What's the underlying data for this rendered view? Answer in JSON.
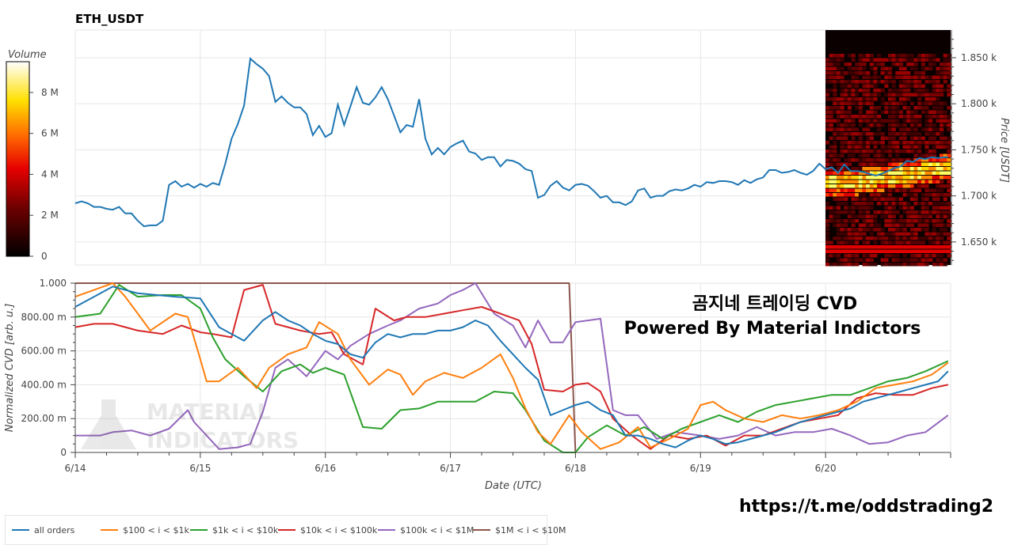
{
  "chart_data": [
    {
      "type": "line",
      "title": "ETH_USDT",
      "ylabel": "Price [USDT]",
      "ylim": [
        1625,
        1880
      ],
      "yticks": [
        "1.650 k",
        "1.700 k",
        "1.750 k",
        "1.800 k",
        "1.850 k"
      ],
      "ytick_values": [
        1650,
        1700,
        1750,
        1800,
        1850
      ],
      "heatmap": {
        "colorbar_label": "Volume",
        "colorbar_ticks": [
          "0",
          "2 M",
          "4 M",
          "6 M",
          "8 M"
        ],
        "colorbar_values": [
          0,
          2,
          4,
          6,
          8
        ],
        "colorbar_max": 9.5
      },
      "series": [
        {
          "color": "#1f77b4",
          "x": [
            0.0,
            0.05,
            0.1,
            0.15,
            0.2,
            0.25,
            0.3,
            0.35,
            0.4,
            0.45,
            0.5,
            0.55,
            0.6,
            0.65,
            0.7,
            0.75,
            0.8,
            0.85,
            0.9,
            0.95,
            1.0,
            1.05,
            1.1,
            1.15,
            1.2,
            1.25,
            1.3,
            1.35,
            1.4,
            1.45,
            1.5,
            1.55,
            1.6,
            1.65,
            1.7,
            1.75,
            1.8,
            1.85,
            1.9,
            1.95,
            2.0,
            2.05,
            2.1,
            2.15,
            2.2,
            2.25,
            2.3,
            2.35,
            2.4,
            2.45,
            2.5,
            2.55,
            2.6,
            2.65,
            2.7,
            2.75,
            2.8,
            2.85,
            2.9,
            2.95,
            3.0,
            3.05,
            3.1,
            3.15,
            3.2,
            3.25,
            3.3,
            3.35,
            3.4,
            3.45,
            3.5,
            3.55,
            3.6,
            3.65,
            3.7,
            3.75,
            3.8,
            3.85,
            3.9,
            3.95,
            4.0,
            4.05,
            4.1,
            4.15,
            4.2,
            4.25,
            4.3,
            4.35,
            4.4,
            4.45,
            4.5,
            4.55,
            4.6,
            4.65,
            4.7,
            4.75,
            4.8,
            4.85,
            4.9,
            4.95,
            5.0,
            5.05,
            5.1,
            5.15,
            5.2,
            5.25,
            5.3,
            5.35,
            5.4,
            5.45,
            5.5,
            5.55,
            5.6,
            5.65,
            5.7,
            5.75,
            5.8,
            5.85,
            5.9,
            5.95,
            6.0,
            6.05,
            6.1,
            6.15,
            6.2,
            6.25,
            6.3,
            6.35,
            6.4,
            6.45,
            6.5,
            6.55,
            6.6,
            6.65,
            6.7,
            6.75,
            6.8,
            6.85,
            6.9,
            6.95,
            6.98
          ],
          "y": [
            1692,
            1694,
            1692,
            1688,
            1688,
            1686,
            1685,
            1688,
            1681,
            1681,
            1673,
            1667,
            1668,
            1668,
            1673,
            1712,
            1716,
            1710,
            1713,
            1709,
            1713,
            1710,
            1714,
            1712,
            1735,
            1762,
            1778,
            1798,
            1849,
            1843,
            1838,
            1830,
            1802,
            1808,
            1801,
            1796,
            1796,
            1789,
            1766,
            1776,
            1764,
            1768,
            1799,
            1777,
            1797,
            1818,
            1801,
            1799,
            1807,
            1818,
            1805,
            1787,
            1769,
            1777,
            1775,
            1805,
            1762,
            1745,
            1752,
            1745,
            1753,
            1757,
            1760,
            1748,
            1746,
            1739,
            1742,
            1742,
            1732,
            1739,
            1738,
            1735,
            1729,
            1727,
            1698,
            1701,
            1711,
            1716,
            1709,
            1706,
            1712,
            1713,
            1711,
            1705,
            1698,
            1700,
            1693,
            1693,
            1690,
            1694,
            1706,
            1708,
            1698,
            1700,
            1700,
            1705,
            1707,
            1706,
            1708,
            1712,
            1710,
            1715,
            1714,
            1716,
            1716,
            1715,
            1712,
            1717,
            1714,
            1718,
            1720,
            1728,
            1728,
            1725,
            1726,
            1728,
            1725,
            1723,
            1727,
            1735,
            1729,
            1731,
            1725,
            1734,
            1727,
            1727,
            1726,
            1724,
            1722,
            1724,
            1727,
            1730,
            1732,
            1738,
            1737,
            1741,
            1740,
            1742,
            1741,
            1742,
            1742
          ]
        }
      ]
    },
    {
      "type": "line",
      "xlabel": "Date (UTC)",
      "ylabel": "Normalized CVD [arb. u.]",
      "ylim": [
        0,
        1
      ],
      "yticks": [
        "0",
        "200.00 m",
        "400.00 m",
        "600.00 m",
        "800.00 m",
        "1.000"
      ],
      "ytick_values": [
        0,
        0.2,
        0.4,
        0.6,
        0.8,
        1.0
      ],
      "categories": [
        "6/14",
        "6/15",
        "6/16",
        "6/17",
        "6/18",
        "6/19",
        "6/20"
      ],
      "x_range": [
        0,
        7
      ],
      "annotations": [
        "곰지네 트레이딩 CVD",
        "Powered By Material Indictors"
      ],
      "watermark": [
        "MATERIAL",
        "INDICATORS"
      ],
      "series": [
        {
          "name": "all orders",
          "color": "#1f77b4",
          "x": [
            0,
            0.3,
            0.5,
            0.8,
            1.0,
            1.15,
            1.35,
            1.5,
            1.6,
            1.7,
            1.8,
            1.9,
            2.0,
            2.1,
            2.2,
            2.3,
            2.4,
            2.5,
            2.6,
            2.7,
            2.8,
            2.9,
            3.0,
            3.1,
            3.2,
            3.3,
            3.4,
            3.5,
            3.6,
            3.7,
            3.8,
            3.9,
            4.0,
            4.1,
            4.2,
            4.3,
            4.4,
            4.5,
            4.6,
            4.7,
            4.8,
            4.9,
            5.0,
            5.1,
            5.2,
            5.3,
            5.4,
            5.5,
            5.6,
            5.7,
            5.8,
            5.9,
            6.0,
            6.1,
            6.2,
            6.3,
            6.4,
            6.5,
            6.6,
            6.7,
            6.8,
            6.9,
            6.98
          ],
          "y": [
            0.86,
            0.98,
            0.94,
            0.92,
            0.91,
            0.74,
            0.66,
            0.78,
            0.83,
            0.78,
            0.75,
            0.7,
            0.66,
            0.64,
            0.58,
            0.56,
            0.65,
            0.7,
            0.68,
            0.7,
            0.7,
            0.72,
            0.72,
            0.74,
            0.78,
            0.75,
            0.66,
            0.58,
            0.5,
            0.43,
            0.22,
            0.25,
            0.28,
            0.3,
            0.25,
            0.22,
            0.1,
            0.1,
            0.08,
            0.05,
            0.03,
            0.07,
            0.1,
            0.08,
            0.05,
            0.06,
            0.08,
            0.1,
            0.12,
            0.15,
            0.18,
            0.2,
            0.22,
            0.24,
            0.26,
            0.3,
            0.32,
            0.34,
            0.36,
            0.38,
            0.4,
            0.42,
            0.48
          ]
        },
        {
          "name": "$100 < i < $1k",
          "color": "#ff7f0e",
          "x": [
            0,
            0.3,
            0.4,
            0.6,
            0.8,
            0.9,
            1.0,
            1.05,
            1.15,
            1.3,
            1.45,
            1.55,
            1.7,
            1.85,
            1.95,
            2.1,
            2.2,
            2.35,
            2.5,
            2.6,
            2.7,
            2.8,
            2.95,
            3.1,
            3.25,
            3.4,
            3.5,
            3.6,
            3.7,
            3.8,
            3.95,
            4.05,
            4.2,
            4.35,
            4.5,
            4.6,
            4.75,
            4.9,
            5.0,
            5.1,
            5.2,
            5.35,
            5.5,
            5.65,
            5.8,
            5.95,
            6.1,
            6.25,
            6.4,
            6.55,
            6.7,
            6.85,
            6.98
          ],
          "y": [
            0.92,
            1.0,
            0.92,
            0.72,
            0.82,
            0.8,
            0.55,
            0.42,
            0.42,
            0.5,
            0.38,
            0.5,
            0.58,
            0.62,
            0.77,
            0.7,
            0.55,
            0.4,
            0.49,
            0.46,
            0.34,
            0.42,
            0.47,
            0.44,
            0.5,
            0.58,
            0.44,
            0.26,
            0.12,
            0.05,
            0.22,
            0.12,
            0.02,
            0.06,
            0.15,
            0.03,
            0.08,
            0.14,
            0.28,
            0.3,
            0.25,
            0.2,
            0.18,
            0.22,
            0.2,
            0.22,
            0.25,
            0.3,
            0.38,
            0.4,
            0.42,
            0.46,
            0.53
          ]
        },
        {
          "name": "$1k < i < $10k",
          "color": "#2ca02c",
          "x": [
            0,
            0.2,
            0.35,
            0.5,
            0.7,
            0.85,
            1.0,
            1.1,
            1.2,
            1.35,
            1.5,
            1.65,
            1.8,
            1.9,
            2.0,
            2.15,
            2.3,
            2.45,
            2.6,
            2.75,
            2.9,
            3.05,
            3.2,
            3.35,
            3.5,
            3.6,
            3.75,
            3.9,
            4.0,
            4.1,
            4.25,
            4.4,
            4.55,
            4.7,
            4.85,
            5.0,
            5.15,
            5.3,
            5.45,
            5.6,
            5.75,
            5.9,
            6.05,
            6.2,
            6.35,
            6.5,
            6.65,
            6.8,
            6.98
          ],
          "y": [
            0.8,
            0.82,
            0.99,
            0.92,
            0.93,
            0.93,
            0.85,
            0.68,
            0.55,
            0.45,
            0.36,
            0.48,
            0.52,
            0.47,
            0.5,
            0.46,
            0.15,
            0.14,
            0.25,
            0.26,
            0.3,
            0.3,
            0.3,
            0.36,
            0.35,
            0.25,
            0.07,
            0.0,
            0.0,
            0.09,
            0.16,
            0.1,
            0.15,
            0.08,
            0.14,
            0.18,
            0.22,
            0.18,
            0.24,
            0.28,
            0.3,
            0.32,
            0.34,
            0.34,
            0.38,
            0.42,
            0.44,
            0.48,
            0.54
          ]
        },
        {
          "name": "$10k < i < $100k",
          "color": "#d62728",
          "x": [
            0,
            0.15,
            0.3,
            0.5,
            0.7,
            0.85,
            1.0,
            1.1,
            1.25,
            1.35,
            1.5,
            1.6,
            1.7,
            1.8,
            1.95,
            2.05,
            2.15,
            2.3,
            2.4,
            2.55,
            2.65,
            2.8,
            2.95,
            3.1,
            3.25,
            3.4,
            3.55,
            3.65,
            3.75,
            3.9,
            4.0,
            4.1,
            4.2,
            4.3,
            4.45,
            4.6,
            4.75,
            4.9,
            5.05,
            5.2,
            5.35,
            5.5,
            5.65,
            5.8,
            5.95,
            6.1,
            6.25,
            6.4,
            6.55,
            6.7,
            6.85,
            6.98
          ],
          "y": [
            0.74,
            0.76,
            0.76,
            0.72,
            0.7,
            0.75,
            0.71,
            0.7,
            0.68,
            0.96,
            0.99,
            0.76,
            0.74,
            0.72,
            0.7,
            0.71,
            0.58,
            0.52,
            0.85,
            0.78,
            0.8,
            0.8,
            0.82,
            0.84,
            0.86,
            0.82,
            0.78,
            0.64,
            0.37,
            0.36,
            0.4,
            0.41,
            0.36,
            0.2,
            0.1,
            0.02,
            0.1,
            0.08,
            0.1,
            0.04,
            0.1,
            0.1,
            0.14,
            0.18,
            0.2,
            0.22,
            0.32,
            0.35,
            0.34,
            0.34,
            0.38,
            0.4
          ]
        },
        {
          "name": "$100k < i < $1M",
          "color": "#9467bd",
          "x": [
            0,
            0.2,
            0.3,
            0.45,
            0.6,
            0.75,
            0.9,
            0.95,
            1.05,
            1.15,
            1.3,
            1.4,
            1.5,
            1.6,
            1.7,
            1.85,
            2.0,
            2.1,
            2.2,
            2.35,
            2.5,
            2.6,
            2.75,
            2.9,
            3.0,
            3.1,
            3.2,
            3.35,
            3.5,
            3.6,
            3.7,
            3.8,
            3.9,
            4.0,
            4.1,
            4.2,
            4.3,
            4.4,
            4.5,
            4.65,
            4.8,
            5.0,
            5.15,
            5.3,
            5.45,
            5.6,
            5.75,
            5.9,
            6.05,
            6.2,
            6.35,
            6.5,
            6.65,
            6.8,
            6.98
          ],
          "y": [
            0.1,
            0.1,
            0.12,
            0.13,
            0.1,
            0.14,
            0.25,
            0.18,
            0.1,
            0.02,
            0.03,
            0.05,
            0.24,
            0.5,
            0.55,
            0.45,
            0.6,
            0.55,
            0.63,
            0.7,
            0.75,
            0.78,
            0.85,
            0.88,
            0.93,
            0.96,
            1.0,
            0.82,
            0.75,
            0.62,
            0.78,
            0.65,
            0.65,
            0.77,
            0.78,
            0.79,
            0.25,
            0.22,
            0.22,
            0.08,
            0.12,
            0.1,
            0.08,
            0.1,
            0.15,
            0.1,
            0.12,
            0.12,
            0.14,
            0.1,
            0.05,
            0.06,
            0.1,
            0.12,
            0.22
          ]
        },
        {
          "name": "$1M < i < $10M",
          "color": "#8c564b",
          "x": [
            0,
            3.95,
            4.0
          ],
          "y": [
            1.0,
            1.0,
            0.0
          ]
        }
      ]
    }
  ],
  "footer": {
    "url": "https://t.me/oddstrading2"
  }
}
